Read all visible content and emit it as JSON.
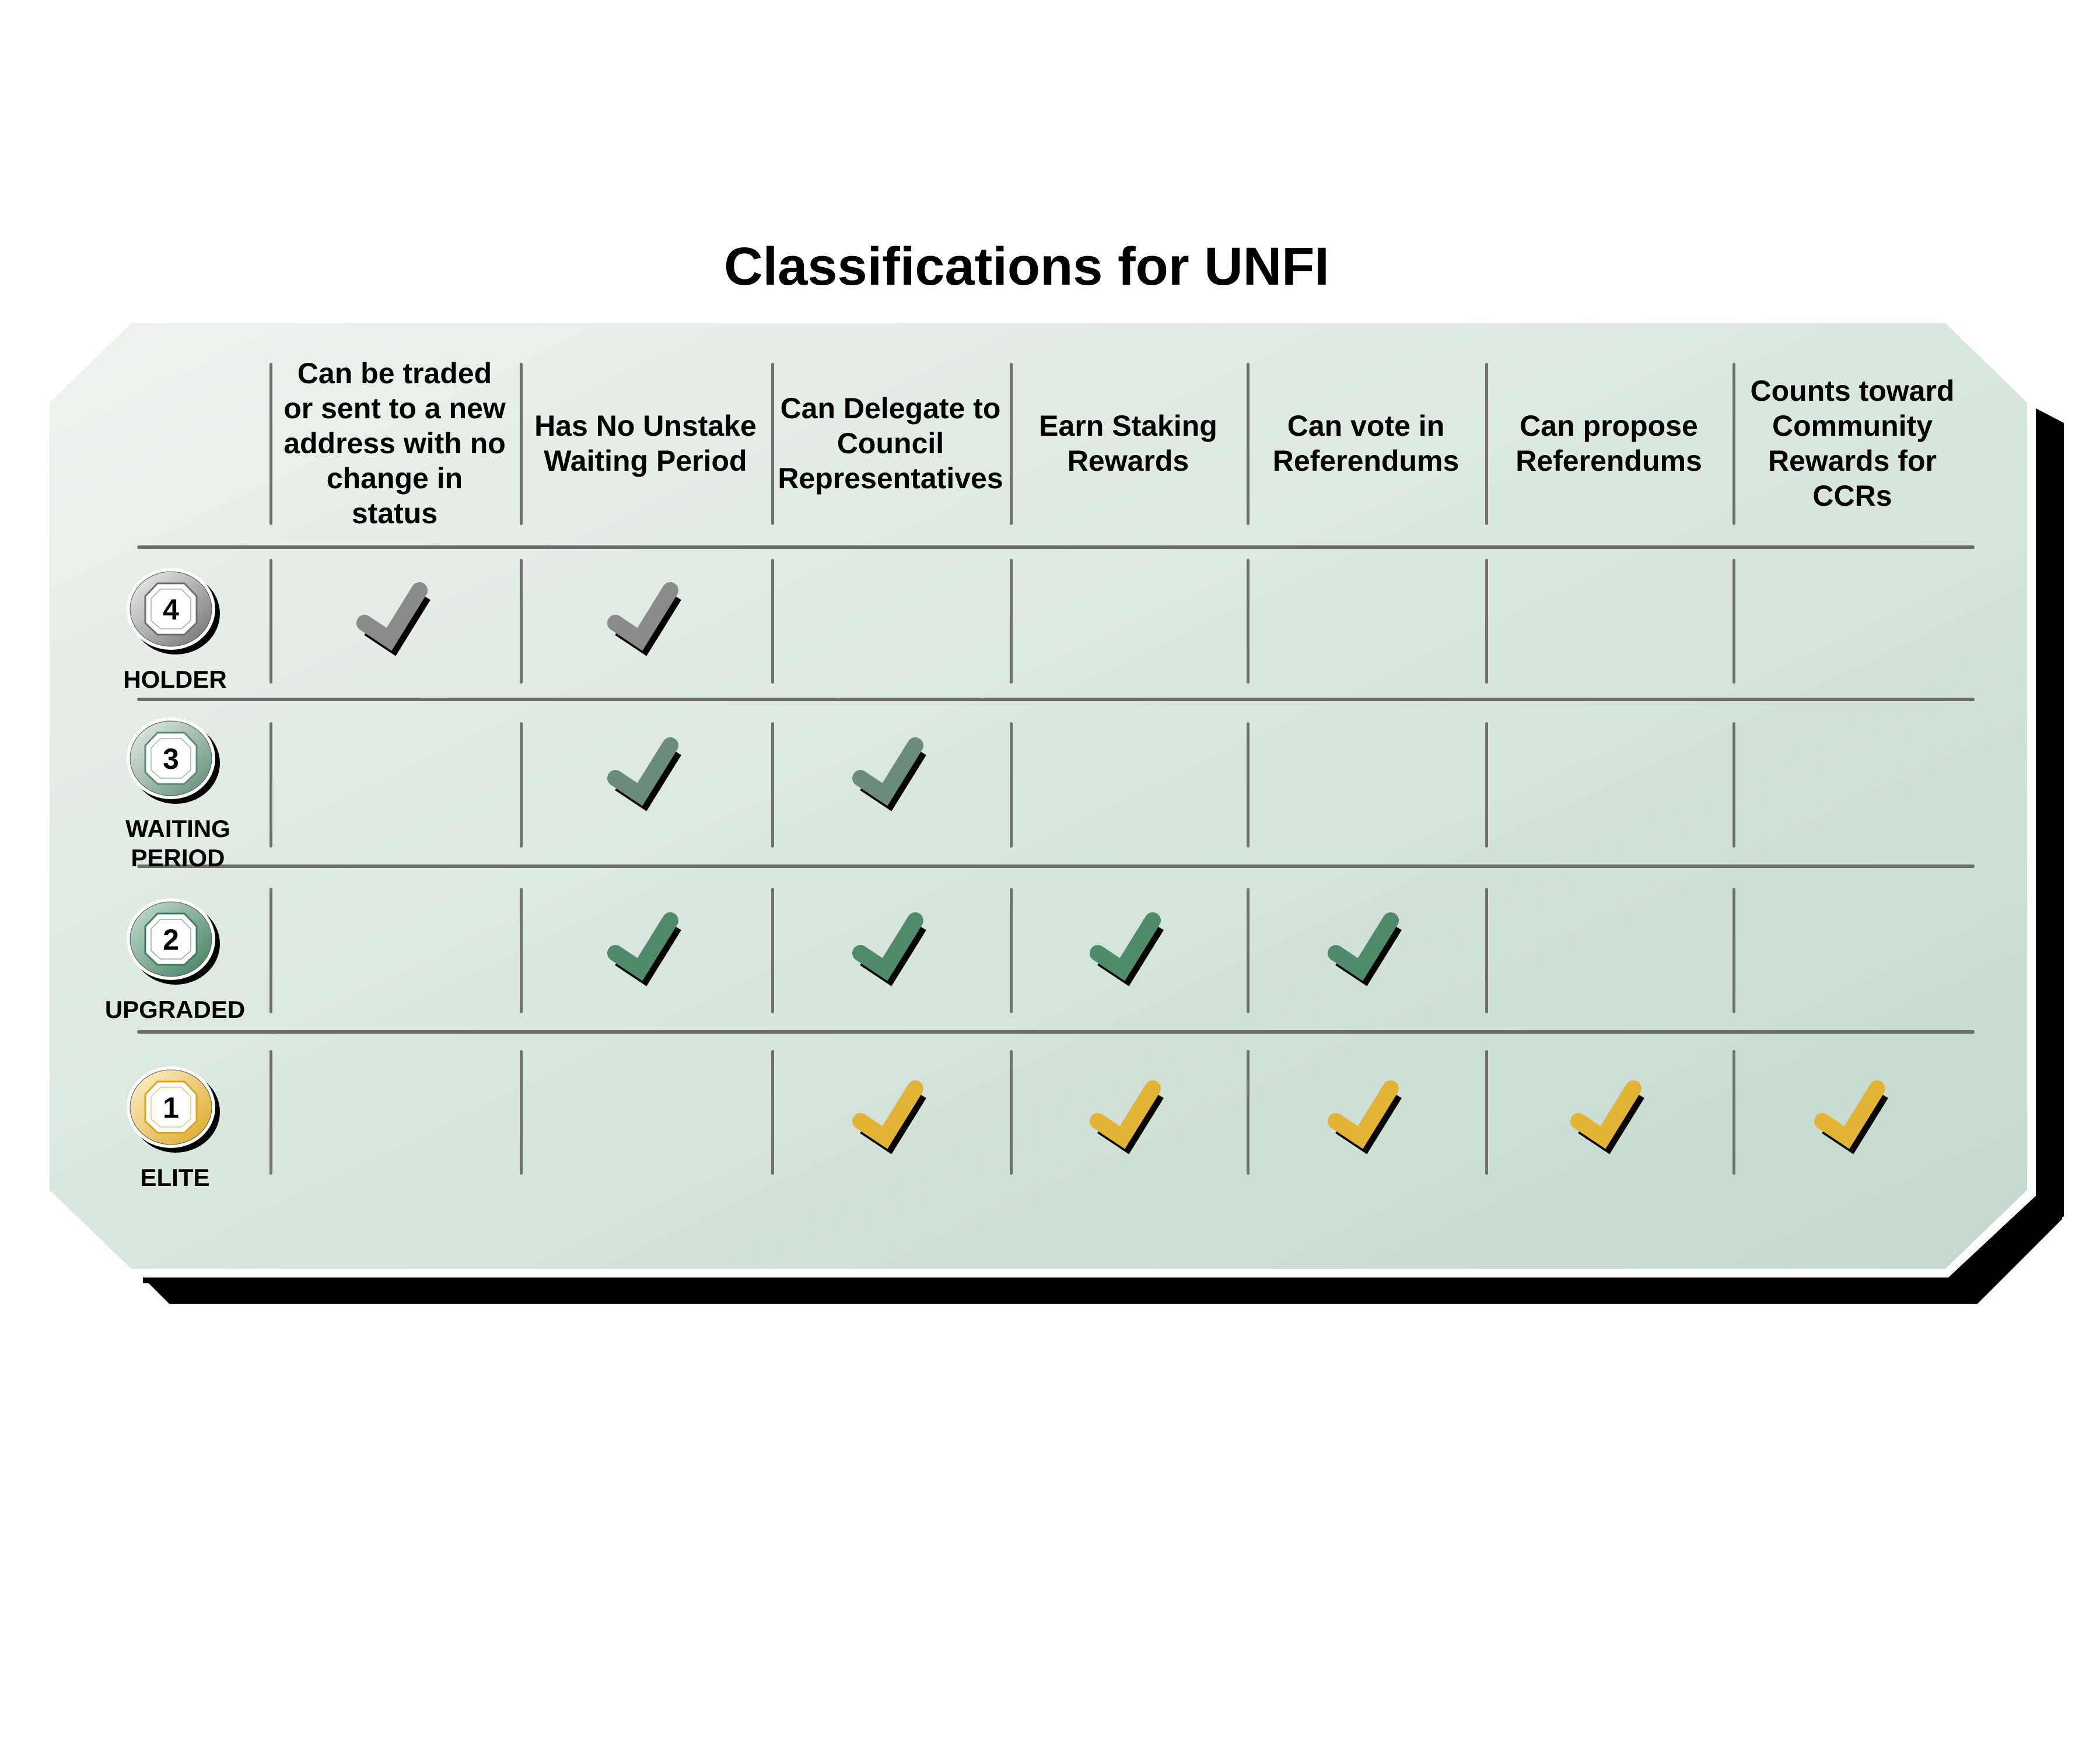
{
  "title": "Classifications for UNFI",
  "columns": [
    "Can be traded or sent to a new address with no change in status",
    "Has No Unstake Waiting Period",
    "Can Delegate to Council Representatives",
    "Earn Staking Rewards",
    "Can vote in Referendums",
    "Can propose Referendums",
    "Counts toward Community Rewards for CCRs"
  ],
  "tiers": [
    {
      "number": "4",
      "label": "HOLDER",
      "color": "#8a8a8a",
      "badge_colors": [
        "#f2f2f2",
        "#6e6e6e"
      ],
      "checks": [
        true,
        true,
        false,
        false,
        false,
        false,
        false
      ]
    },
    {
      "number": "3",
      "label": "WAITING PERIOD",
      "color": "#6b8c79",
      "badge_colors": [
        "#e8f0ec",
        "#5d8a72"
      ],
      "checks": [
        false,
        true,
        true,
        false,
        false,
        false,
        false
      ]
    },
    {
      "number": "2",
      "label": "UPGRADED",
      "color": "#4f8a6a",
      "badge_colors": [
        "#c9e0d3",
        "#3f7d5c"
      ],
      "checks": [
        false,
        true,
        true,
        true,
        true,
        false,
        false
      ]
    },
    {
      "number": "1",
      "label": "ELITE",
      "color": "#e3b335",
      "badge_colors": [
        "#fff3d0",
        "#d9a520"
      ],
      "checks": [
        false,
        false,
        true,
        true,
        true,
        true,
        true
      ]
    }
  ],
  "panel_colors": [
    "#eef3f0",
    "#c3d9ce"
  ]
}
